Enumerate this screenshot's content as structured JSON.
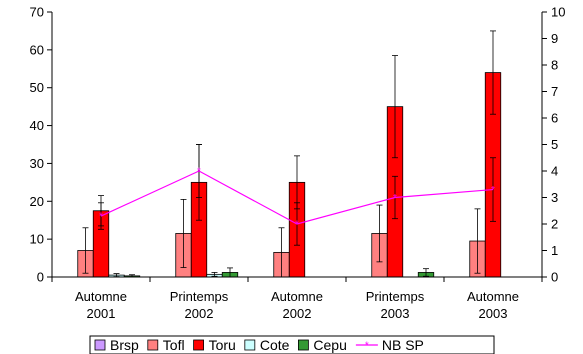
{
  "chart_data": {
    "type": "bar",
    "title": "",
    "xlabel": "",
    "ylabel": "",
    "categories": [
      [
        "Automne",
        "2001"
      ],
      [
        "Printemps",
        "2002"
      ],
      [
        "Automne",
        "2002"
      ],
      [
        "Printemps",
        "2003"
      ],
      [
        "Automne",
        "2003"
      ]
    ],
    "ylim": [
      0,
      70
    ],
    "yticks": [
      "0",
      "10",
      "20",
      "30",
      "40",
      "50",
      "60",
      "70"
    ],
    "y2lim": [
      0,
      10
    ],
    "y2ticks": [
      "0",
      "1",
      "2",
      "3",
      "4",
      "5",
      "6",
      "7",
      "8",
      "9",
      "10"
    ],
    "grid": false,
    "legend_position": "bottom",
    "series": [
      {
        "name": "Brsp",
        "kind": "bar",
        "axis": "left",
        "color": "#cc99ff",
        "values": [
          0,
          0,
          0,
          0,
          0
        ],
        "err": [
          0,
          0,
          0,
          0,
          0
        ]
      },
      {
        "name": "Tofl",
        "kind": "bar",
        "axis": "left",
        "color": "#ff8080",
        "values": [
          7,
          11.5,
          6.5,
          11.5,
          9.5
        ],
        "err": [
          6,
          9,
          6.5,
          7.5,
          8.5
        ]
      },
      {
        "name": "Toru",
        "kind": "bar",
        "axis": "left",
        "color": "#ff0000",
        "values": [
          17.5,
          25,
          25,
          45,
          54
        ],
        "err": [
          4,
          10,
          7,
          13.5,
          11
        ]
      },
      {
        "name": "Cote",
        "kind": "bar",
        "axis": "left",
        "color": "#ccffff",
        "values": [
          0.5,
          0.7,
          0,
          0,
          0
        ],
        "err": [
          0.4,
          0.5,
          0,
          0,
          0
        ]
      },
      {
        "name": "Cepu",
        "kind": "bar",
        "axis": "left",
        "color": "#339933",
        "values": [
          0.3,
          1.2,
          0,
          1.2,
          0
        ],
        "err": [
          0.3,
          1.2,
          0,
          1.0,
          0
        ]
      },
      {
        "name": "NB SP",
        "kind": "line",
        "axis": "right",
        "color": "#ff00ff",
        "values": [
          2.3,
          4.0,
          2.0,
          3.0,
          3.3
        ],
        "err": [
          0.5,
          1.0,
          0.8,
          0.8,
          1.2
        ]
      }
    ]
  }
}
